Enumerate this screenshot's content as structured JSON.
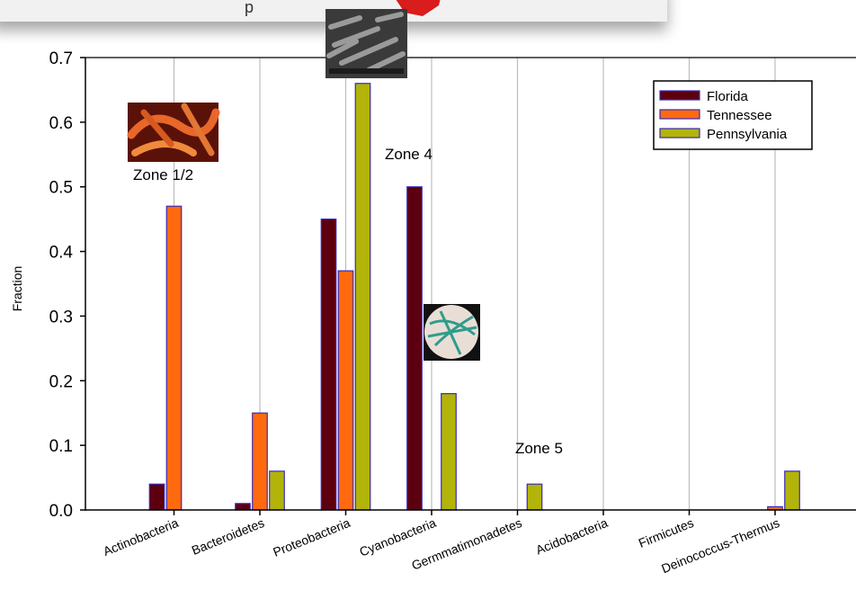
{
  "top_panel": {
    "text": "p"
  },
  "colors": {
    "florida": "#5c0010",
    "tennessee": "#ff6a0e",
    "pennsylvania": "#b2b40a",
    "bar_edge": "#3a2ab8",
    "grid": "#bdbdbd"
  },
  "chart_data": {
    "type": "bar",
    "ylabel": "Fraction",
    "xlabel": "",
    "ylim": [
      0,
      0.7
    ],
    "yticks": [
      "0.0",
      "0.1",
      "0.2",
      "0.3",
      "0.4",
      "0.5",
      "0.6",
      "0.7"
    ],
    "grid": "vertical",
    "legend_position": "top-right",
    "categories": [
      "Actinobacteria",
      "Bacteroidetes",
      "Proteobacteria",
      "Cyanobacteria",
      "Germmatimonadetes",
      "Acidobacteria",
      "Firmicutes",
      "Deinococcus-Thermus"
    ],
    "series": [
      {
        "name": "Florida",
        "values": [
          0.04,
          0.01,
          0.45,
          0.5,
          0,
          0,
          0,
          0
        ]
      },
      {
        "name": "Tennessee",
        "values": [
          0.47,
          0.15,
          0.37,
          0,
          0,
          0,
          0,
          0.005
        ]
      },
      {
        "name": "Pennsylvania",
        "values": [
          0,
          0.06,
          0.66,
          0.18,
          0.04,
          0,
          0,
          0.06
        ]
      }
    ],
    "annotations": [
      "Zone 1/2",
      "Zone 4",
      "Zone 5"
    ]
  }
}
